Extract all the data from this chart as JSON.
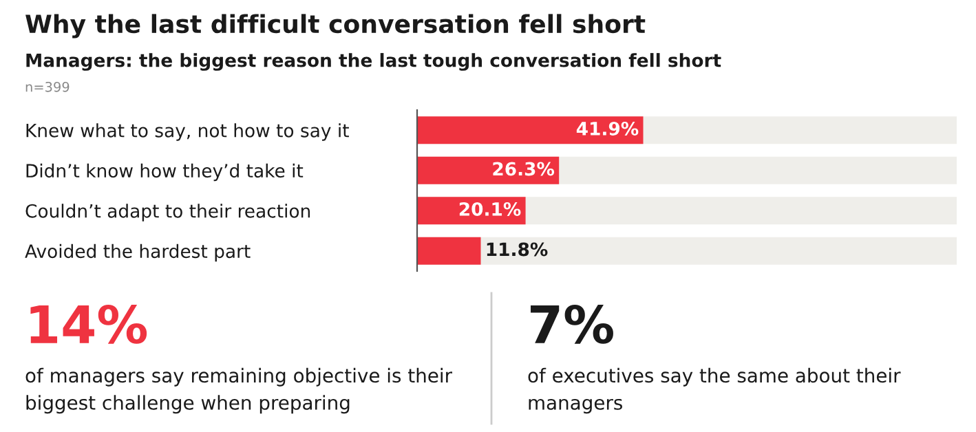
{
  "chart_data": [
    {
      "type": "bar",
      "orientation": "horizontal",
      "title": "Why the last difficult conversation fell short",
      "subtitle": "Managers: the biggest reason the last tough conversation fell short",
      "annotations": [
        "n=399"
      ],
      "categories": [
        "Knew what to say, not how to say it",
        "Didn’t know how they’d take it",
        "Couldn’t adapt to their reaction",
        "Avoided the hardest part"
      ],
      "values": [
        41.9,
        26.3,
        20.1,
        11.8
      ],
      "value_labels": [
        "41.9%",
        "26.3%",
        "20.1%",
        "11.8%"
      ],
      "color": "#ef3340",
      "xlim": [
        0,
        100
      ],
      "tick_labels": "y",
      "grid": false,
      "legend": false
    },
    {
      "type": "other",
      "annotations": [
        "14%",
        "of managers say remaining objective is their\nbiggest challenge when preparing"
      ],
      "color": "#ef3340"
    },
    {
      "type": "other",
      "annotations": [
        "7%",
        "of executives say the same about their\nmanagers"
      ],
      "color": "#1a1a1a"
    }
  ]
}
